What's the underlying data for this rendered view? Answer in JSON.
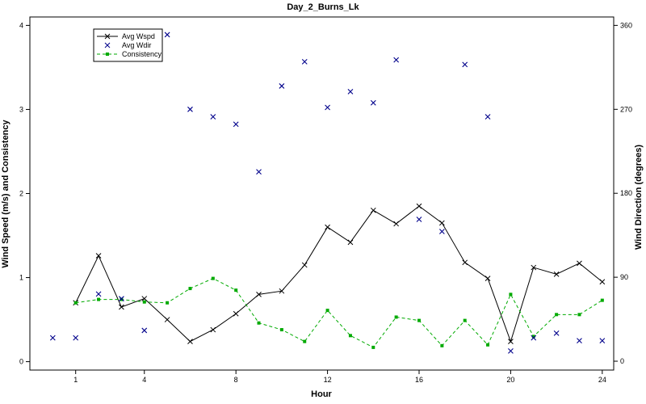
{
  "chart_data": {
    "type": "line",
    "title": "Day_2_Burns_Lk",
    "xlabel": "Hour",
    "ylabel_left": "Wind Speed (m/s) and Consistency",
    "ylabel_right": "Wind Direction (degrees)",
    "xlim": [
      -1,
      24.5
    ],
    "ylim_left": [
      -0.1,
      4.1
    ],
    "ylim_right": [
      -9.5,
      369
    ],
    "x_ticks": [
      1,
      4,
      8,
      12,
      16,
      20,
      24
    ],
    "y_left_ticks": [
      0,
      1,
      2,
      3,
      4
    ],
    "y_right_ticks": [
      0,
      90,
      180,
      270,
      360
    ],
    "grid": false,
    "legend_position": "top-left",
    "colors": {
      "wspd": "#000000",
      "wdir": "#00008b",
      "consistency": "#00aa00"
    },
    "series": [
      {
        "name": "Avg Wspd",
        "axis": "left",
        "style": "line-x",
        "x": [
          1,
          2,
          3,
          4,
          5,
          6,
          7,
          8,
          9,
          10,
          11,
          12,
          13,
          14,
          15,
          16,
          17,
          18,
          19,
          20,
          21,
          22,
          23,
          24
        ],
        "values": [
          0.7,
          1.26,
          0.65,
          0.75,
          0.5,
          0.24,
          0.38,
          0.57,
          0.8,
          0.84,
          1.15,
          1.6,
          1.42,
          1.8,
          1.64,
          1.85,
          1.65,
          1.18,
          0.99,
          0.24,
          1.12,
          1.04,
          1.17,
          0.95
        ]
      },
      {
        "name": "Avg Wdir",
        "axis": "right",
        "style": "x-marker",
        "x": [
          0,
          1,
          2,
          3,
          4,
          5,
          6,
          7,
          8,
          9,
          10,
          11,
          12,
          13,
          14,
          15,
          16,
          17,
          18,
          19,
          20,
          21,
          22,
          23,
          24
        ],
        "values": [
          25,
          25,
          72,
          67,
          33,
          350,
          270,
          262,
          254,
          203,
          295,
          321,
          272,
          289,
          277,
          323,
          152,
          139,
          318,
          262,
          11,
          25,
          30,
          22,
          22
        ]
      },
      {
        "name": "Consistency",
        "axis": "left",
        "style": "dashed-square",
        "x": [
          1,
          2,
          3,
          4,
          5,
          6,
          7,
          8,
          9,
          10,
          11,
          12,
          13,
          14,
          15,
          16,
          17,
          18,
          19,
          20,
          21,
          22,
          23,
          24
        ],
        "values": [
          0.7,
          0.74,
          0.74,
          0.71,
          0.7,
          0.87,
          0.99,
          0.85,
          0.46,
          0.38,
          0.24,
          0.61,
          0.31,
          0.17,
          0.53,
          0.49,
          0.19,
          0.49,
          0.2,
          0.8,
          0.3,
          0.56,
          0.56,
          0.73
        ]
      }
    ]
  }
}
